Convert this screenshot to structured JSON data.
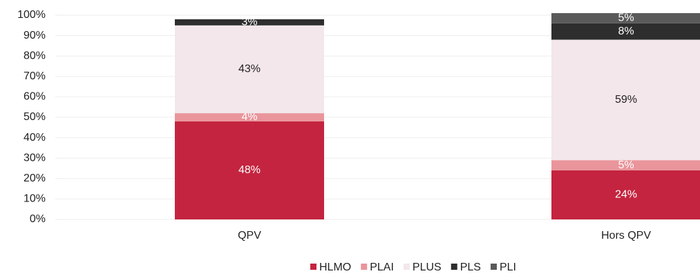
{
  "chart_data": {
    "type": "stacked_bar",
    "categories": [
      "QPV",
      "Hors QPV"
    ],
    "series": [
      {
        "name": "HLMO",
        "color": "#c4243f",
        "label_color": "#ffffff",
        "values": [
          48,
          24
        ],
        "value_labels": [
          "48%",
          "24%"
        ]
      },
      {
        "name": "PLAI",
        "color": "#e9959b",
        "label_color": "#ffffff",
        "values": [
          4,
          5
        ],
        "value_labels": [
          "4%",
          "5%"
        ]
      },
      {
        "name": "PLUS",
        "color": "#f3e7eb",
        "label_color": "#222222",
        "values": [
          43,
          59
        ],
        "value_labels": [
          "43%",
          "59%"
        ]
      },
      {
        "name": "PLS",
        "color": "#2e2e2e",
        "label_color": "#ffffff",
        "values": [
          3,
          8
        ],
        "value_labels": [
          "3%",
          "8%"
        ]
      },
      {
        "name": "PLI",
        "color": "#5a5a5a",
        "label_color": "#ffffff",
        "values": [
          null,
          5
        ],
        "value_labels": [
          null,
          "5%"
        ]
      }
    ],
    "ylim": [
      0,
      100
    ],
    "yticks": [
      {
        "value": 0,
        "label": "0%"
      },
      {
        "value": 10,
        "label": "10%"
      },
      {
        "value": 20,
        "label": "20%"
      },
      {
        "value": 30,
        "label": "30%"
      },
      {
        "value": 40,
        "label": "40%"
      },
      {
        "value": 50,
        "label": "50%"
      },
      {
        "value": 60,
        "label": "60%"
      },
      {
        "value": 70,
        "label": "70%"
      },
      {
        "value": 80,
        "label": "80%"
      },
      {
        "value": 90,
        "label": "90%"
      },
      {
        "value": 100,
        "label": "100%"
      }
    ],
    "grid": true,
    "legend": "bottom"
  }
}
